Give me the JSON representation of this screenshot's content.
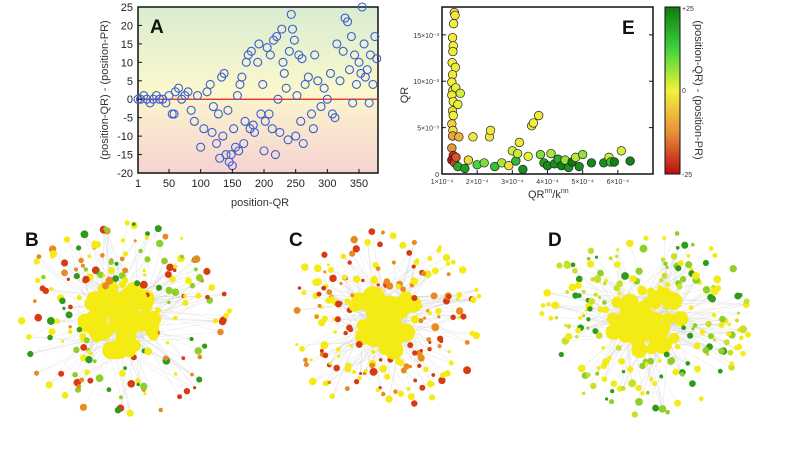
{
  "panels": {
    "a": "A",
    "b": "B",
    "c": "C",
    "d": "D",
    "e": "E"
  },
  "chart_data": [
    {
      "panel": "A",
      "type": "scatter",
      "xlabel": "position-QR",
      "ylabel": "(position-QR) - (position-PR)",
      "xlim": [
        1,
        380
      ],
      "ylim": [
        -20,
        25
      ],
      "xticks": [
        "1",
        "50",
        "100",
        "150",
        "200",
        "250",
        "300",
        "350"
      ],
      "yticks": [
        "-20",
        "-15",
        "-10",
        "-5",
        "0",
        "5",
        "10",
        "15",
        "20",
        "25"
      ],
      "reference_line": {
        "y": 0,
        "color": "#e02020"
      },
      "marker": {
        "shape": "open-circle",
        "color": "#3a5fd0"
      },
      "background_gradient": [
        "#d9ecd2",
        "#fbf8cc",
        "#f6d2d2"
      ],
      "points": [
        [
          1,
          0
        ],
        [
          5,
          0
        ],
        [
          10,
          1
        ],
        [
          15,
          0
        ],
        [
          20,
          -1
        ],
        [
          25,
          0
        ],
        [
          30,
          1
        ],
        [
          35,
          0
        ],
        [
          40,
          0
        ],
        [
          45,
          -1
        ],
        [
          50,
          1
        ],
        [
          55,
          -4
        ],
        [
          58,
          -4
        ],
        [
          60,
          2
        ],
        [
          65,
          3
        ],
        [
          70,
          0
        ],
        [
          75,
          1
        ],
        [
          80,
          2
        ],
        [
          85,
          -3
        ],
        [
          90,
          -6
        ],
        [
          95,
          1
        ],
        [
          100,
          -13
        ],
        [
          105,
          -8
        ],
        [
          110,
          2
        ],
        [
          115,
          4
        ],
        [
          118,
          -9
        ],
        [
          120,
          -2
        ],
        [
          125,
          -12
        ],
        [
          128,
          -4
        ],
        [
          130,
          -16
        ],
        [
          133,
          6
        ],
        [
          135,
          -10
        ],
        [
          137,
          7
        ],
        [
          140,
          -15
        ],
        [
          143,
          -3
        ],
        [
          145,
          -17
        ],
        [
          148,
          -15
        ],
        [
          150,
          -18
        ],
        [
          152,
          -8
        ],
        [
          155,
          -13
        ],
        [
          158,
          1
        ],
        [
          160,
          -14
        ],
        [
          162,
          4
        ],
        [
          165,
          6
        ],
        [
          168,
          -12
        ],
        [
          170,
          -6
        ],
        [
          172,
          10
        ],
        [
          175,
          12
        ],
        [
          178,
          -8
        ],
        [
          180,
          13
        ],
        [
          183,
          -7
        ],
        [
          185,
          -9
        ],
        [
          190,
          10
        ],
        [
          192,
          15
        ],
        [
          195,
          -4
        ],
        [
          198,
          4
        ],
        [
          200,
          -14
        ],
        [
          202,
          -6
        ],
        [
          205,
          14
        ],
        [
          208,
          -4
        ],
        [
          210,
          12
        ],
        [
          213,
          -8
        ],
        [
          215,
          16
        ],
        [
          218,
          -15
        ],
        [
          220,
          17
        ],
        [
          222,
          0
        ],
        [
          225,
          -9
        ],
        [
          228,
          19
        ],
        [
          230,
          10
        ],
        [
          232,
          7
        ],
        [
          235,
          3
        ],
        [
          238,
          -11
        ],
        [
          240,
          13
        ],
        [
          243,
          23
        ],
        [
          245,
          19
        ],
        [
          248,
          16
        ],
        [
          250,
          -10
        ],
        [
          252,
          1
        ],
        [
          255,
          12
        ],
        [
          258,
          -6
        ],
        [
          260,
          11
        ],
        [
          262,
          -12
        ],
        [
          265,
          4
        ],
        [
          270,
          6
        ],
        [
          275,
          -4
        ],
        [
          278,
          -8
        ],
        [
          280,
          12
        ],
        [
          285,
          5
        ],
        [
          290,
          -2
        ],
        [
          295,
          3
        ],
        [
          300,
          0
        ],
        [
          305,
          7
        ],
        [
          308,
          -4
        ],
        [
          312,
          -5
        ],
        [
          315,
          15
        ],
        [
          320,
          5
        ],
        [
          325,
          13
        ],
        [
          328,
          22
        ],
        [
          332,
          21
        ],
        [
          335,
          8
        ],
        [
          338,
          17
        ],
        [
          340,
          -1
        ],
        [
          343,
          12
        ],
        [
          346,
          4
        ],
        [
          350,
          10
        ],
        [
          353,
          7
        ],
        [
          355,
          25
        ],
        [
          358,
          15
        ],
        [
          360,
          6
        ],
        [
          363,
          8
        ],
        [
          366,
          -1
        ],
        [
          368,
          12
        ],
        [
          372,
          4
        ],
        [
          375,
          17
        ],
        [
          378,
          11
        ]
      ]
    },
    {
      "panel": "E",
      "type": "scatter",
      "xlabel": "QR",
      "xlabel_sup": "nn",
      "xlabel_mid": "/k",
      "xlabel_sup2": "nn",
      "ylabel": "QR",
      "xlim": [
        0.0001,
        0.0007
      ],
      "ylim": [
        0,
        0.018
      ],
      "xticks": [
        "1×10⁻⁴",
        "2×10⁻⁴",
        "3×10⁻⁴",
        "4×10⁻⁴",
        "5×10⁻⁴",
        "6×10⁻⁴"
      ],
      "yticks": [
        "0",
        "5×10⁻³",
        "10×10⁻³",
        "15×10⁻³"
      ],
      "colorbar": {
        "label": "(position-QR) - (position-PR)",
        "max_label": "+25",
        "mid_label": "0",
        "min_label": "-25",
        "colors": [
          "#0f7a12",
          "#3fd33b",
          "#f2f23a",
          "#e8903a",
          "#b80f0f"
        ]
      },
      "points": [
        [
          0.000135,
          0.0174,
          -2
        ],
        [
          0.000137,
          0.0171,
          -1
        ],
        [
          0.000133,
          0.0162,
          0
        ],
        [
          0.00013,
          0.0147,
          -1
        ],
        [
          0.000132,
          0.0138,
          0
        ],
        [
          0.000131,
          0.0132,
          -1
        ],
        [
          0.000129,
          0.012,
          0
        ],
        [
          0.000138,
          0.0115,
          1
        ],
        [
          0.00013,
          0.0107,
          -1
        ],
        [
          0.000128,
          0.0099,
          0
        ],
        [
          0.000131,
          0.009,
          -2
        ],
        [
          0.000139,
          0.0093,
          1
        ],
        [
          0.000152,
          0.0087,
          2
        ],
        [
          0.000128,
          0.0085,
          -1
        ],
        [
          0.000132,
          0.0078,
          0
        ],
        [
          0.000145,
          0.0075,
          1
        ],
        [
          0.00013,
          0.0068,
          -3
        ],
        [
          0.000132,
          0.0063,
          0
        ],
        [
          0.000128,
          0.0054,
          -4
        ],
        [
          0.000131,
          0.0047,
          -2
        ],
        [
          0.00013,
          0.0041,
          -10
        ],
        [
          0.000148,
          0.004,
          -8
        ],
        [
          0.000128,
          0.0028,
          -12
        ],
        [
          0.000132,
          0.002,
          -22
        ],
        [
          0.000128,
          0.0015,
          -25
        ],
        [
          0.000136,
          0.0012,
          -20
        ],
        [
          0.00014,
          0.0018,
          -18
        ],
        [
          0.000145,
          0.0008,
          18
        ],
        [
          0.000165,
          0.0006,
          20
        ],
        [
          0.000175,
          0.0015,
          -3
        ],
        [
          0.000188,
          0.004,
          -1
        ],
        [
          0.0002,
          0.001,
          12
        ],
        [
          0.00022,
          0.0012,
          8
        ],
        [
          0.000235,
          0.004,
          -2
        ],
        [
          0.000238,
          0.0047,
          -1
        ],
        [
          0.00025,
          0.0008,
          15
        ],
        [
          0.00027,
          0.0012,
          5
        ],
        [
          0.00029,
          0.0009,
          -2
        ],
        [
          0.0003,
          0.0025,
          2
        ],
        [
          0.00031,
          0.0014,
          16
        ],
        [
          0.000315,
          0.0022,
          3
        ],
        [
          0.00032,
          0.0034,
          -1
        ],
        [
          0.00033,
          0.0005,
          22
        ],
        [
          0.000345,
          0.0019,
          1
        ],
        [
          0.000355,
          0.0052,
          -1
        ],
        [
          0.00036,
          0.0055,
          0
        ],
        [
          0.000375,
          0.0063,
          -1
        ],
        [
          0.00038,
          0.0021,
          8
        ],
        [
          0.00039,
          0.0012,
          20
        ],
        [
          0.0004,
          0.0009,
          23
        ],
        [
          0.00041,
          0.0022,
          5
        ],
        [
          0.00042,
          0.0011,
          22
        ],
        [
          0.00043,
          0.0016,
          18
        ],
        [
          0.00044,
          0.0009,
          24
        ],
        [
          0.00045,
          0.0015,
          6
        ],
        [
          0.00046,
          0.0007,
          21
        ],
        [
          0.00047,
          0.0013,
          25
        ],
        [
          0.00048,
          0.0018,
          4
        ],
        [
          0.00049,
          0.0008,
          22
        ],
        [
          0.0005,
          0.0021,
          7
        ],
        [
          0.000525,
          0.0012,
          23
        ],
        [
          0.00056,
          0.0012,
          22
        ],
        [
          0.000575,
          0.0018,
          3
        ],
        [
          0.00058,
          0.0013,
          14
        ],
        [
          0.00059,
          0.0013,
          24
        ],
        [
          0.00061,
          0.0025,
          2
        ],
        [
          0.000635,
          0.0014,
          24
        ]
      ]
    }
  ],
  "networks": [
    {
      "panel": "B",
      "node_colors": [
        "#f5eb14",
        "#f5eb14",
        "#d83a12",
        "#e88a20",
        "#8fcf2a",
        "#2f9a1c"
      ]
    },
    {
      "panel": "C",
      "node_colors": [
        "#f5eb14",
        "#f5eb14",
        "#d83a12",
        "#e88a20"
      ]
    },
    {
      "panel": "D",
      "node_colors": [
        "#f5eb14",
        "#f5eb14",
        "#c9e02a",
        "#8fcf2a",
        "#2f9a1c"
      ]
    }
  ]
}
